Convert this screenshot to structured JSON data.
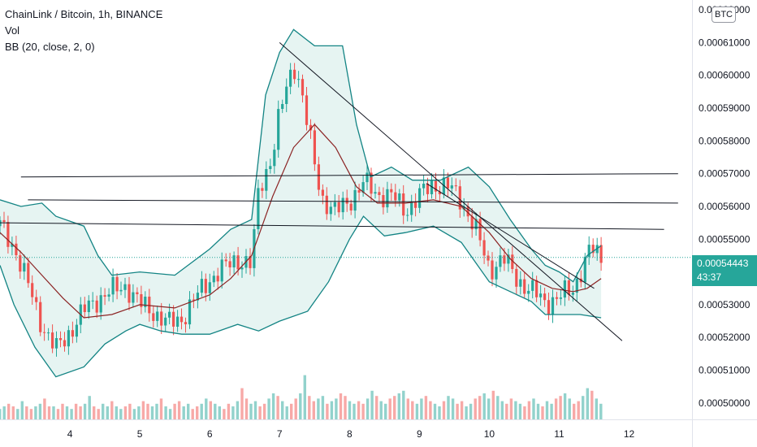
{
  "legend": {
    "symbol": "ChainLink / Bitcoin, 1h, BINANCE",
    "vol": "Vol",
    "bb": "BB (20, close, 2, 0)"
  },
  "currency_button": "BTC",
  "last_price": {
    "value": "0.00054443",
    "countdown": "43:37"
  },
  "colors": {
    "up": "#26a69a",
    "down": "#ef5350",
    "bb_band": "#138484",
    "bb_basis": "#8b2323",
    "bb_fill": "#e6f4f2",
    "trendline": "#131722"
  },
  "chart_data": {
    "type": "candlestick",
    "title": "ChainLink / Bitcoin, 1h, BINANCE",
    "y_ticks": [
      "0.00050000",
      "0.00051000",
      "0.00052000",
      "0.00053000",
      "0.00054000",
      "0.00055000",
      "0.00056000",
      "0.00057000",
      "0.00058000",
      "0.00059000",
      "0.00060000",
      "0.00061000",
      "0.00062000"
    ],
    "x_ticks": [
      "4",
      "5",
      "6",
      "7",
      "8",
      "9",
      "10",
      "11",
      "12"
    ],
    "ylim": [
      0.000495,
      0.000623
    ],
    "xlim": [
      3.0,
      12.9
    ],
    "last_price": 0.00054443,
    "indicators": [
      "Vol",
      "BB (20, close, 2, 0)"
    ],
    "bb_upper_points": [
      [
        3.0,
        0.000562
      ],
      [
        3.3,
        0.00056
      ],
      [
        3.6,
        0.000561
      ],
      [
        3.8,
        0.000557
      ],
      [
        4.2,
        0.000554
      ],
      [
        4.4,
        0.000545
      ],
      [
        4.6,
        0.000539
      ],
      [
        5.0,
        0.00054
      ],
      [
        5.5,
        0.000539
      ],
      [
        6.0,
        0.000547
      ],
      [
        6.3,
        0.000553
      ],
      [
        6.6,
        0.000556
      ],
      [
        6.8,
        0.000594
      ],
      [
        7.0,
        0.000607
      ],
      [
        7.2,
        0.000614
      ],
      [
        7.5,
        0.000609
      ],
      [
        7.9,
        0.000609
      ],
      [
        8.1,
        0.000585
      ],
      [
        8.3,
        0.000569
      ],
      [
        8.6,
        0.000572
      ],
      [
        8.9,
        0.000568
      ],
      [
        9.3,
        0.000568
      ],
      [
        9.7,
        0.000572
      ],
      [
        10.0,
        0.000566
      ],
      [
        10.3,
        0.000556
      ],
      [
        10.6,
        0.000547
      ],
      [
        10.8,
        0.000542
      ],
      [
        11.0,
        0.00054
      ],
      [
        11.2,
        0.000537
      ],
      [
        11.4,
        0.000545
      ],
      [
        11.6,
        0.000548
      ]
    ],
    "bb_lower_points": [
      [
        3.0,
        0.000542
      ],
      [
        3.2,
        0.00053
      ],
      [
        3.5,
        0.000517
      ],
      [
        3.8,
        0.000508
      ],
      [
        4.2,
        0.000511
      ],
      [
        4.5,
        0.000518
      ],
      [
        4.8,
        0.000522
      ],
      [
        5.0,
        0.000524
      ],
      [
        5.3,
        0.000522
      ],
      [
        5.6,
        0.000521
      ],
      [
        6.0,
        0.000521
      ],
      [
        6.4,
        0.000524
      ],
      [
        6.7,
        0.000522
      ],
      [
        7.0,
        0.000525
      ],
      [
        7.4,
        0.000528
      ],
      [
        7.7,
        0.000537
      ],
      [
        8.0,
        0.00055
      ],
      [
        8.2,
        0.000557
      ],
      [
        8.5,
        0.000551
      ],
      [
        8.8,
        0.000552
      ],
      [
        9.2,
        0.000554
      ],
      [
        9.6,
        0.000549
      ],
      [
        10.0,
        0.000537
      ],
      [
        10.3,
        0.000534
      ],
      [
        10.6,
        0.000531
      ],
      [
        10.8,
        0.000527
      ],
      [
        11.0,
        0.000527
      ],
      [
        11.3,
        0.000527
      ],
      [
        11.6,
        0.000526
      ]
    ],
    "bb_basis_points": [
      [
        3.0,
        0.000552
      ],
      [
        3.3,
        0.000546
      ],
      [
        3.6,
        0.000539
      ],
      [
        3.9,
        0.000532
      ],
      [
        4.2,
        0.000526
      ],
      [
        4.6,
        0.000527
      ],
      [
        5.0,
        0.00053
      ],
      [
        5.5,
        0.000529
      ],
      [
        6.0,
        0.000533
      ],
      [
        6.3,
        0.000538
      ],
      [
        6.6,
        0.000545
      ],
      [
        6.9,
        0.000563
      ],
      [
        7.2,
        0.000578
      ],
      [
        7.5,
        0.000585
      ],
      [
        7.8,
        0.000578
      ],
      [
        8.1,
        0.000566
      ],
      [
        8.4,
        0.000561
      ],
      [
        8.8,
        0.000561
      ],
      [
        9.2,
        0.000562
      ],
      [
        9.6,
        0.00056
      ],
      [
        10.0,
        0.000552
      ],
      [
        10.3,
        0.000544
      ],
      [
        10.6,
        0.000538
      ],
      [
        10.9,
        0.000535
      ],
      [
        11.2,
        0.000534
      ],
      [
        11.4,
        0.000535
      ],
      [
        11.6,
        0.000538
      ]
    ],
    "price_points": [
      [
        3.0,
        0.000554
      ],
      [
        3.2,
        0.000548
      ],
      [
        3.4,
        0.000536
      ],
      [
        3.6,
        0.000524
      ],
      [
        3.8,
        0.000516
      ],
      [
        4.0,
        0.000522
      ],
      [
        4.2,
        0.000528
      ],
      [
        4.4,
        0.000532
      ],
      [
        4.6,
        0.000534
      ],
      [
        4.8,
        0.000536
      ],
      [
        5.0,
        0.00053
      ],
      [
        5.2,
        0.000528
      ],
      [
        5.4,
        0.000524
      ],
      [
        5.6,
        0.000526
      ],
      [
        5.8,
        0.000532
      ],
      [
        6.0,
        0.000538
      ],
      [
        6.2,
        0.000541
      ],
      [
        6.4,
        0.000544
      ],
      [
        6.6,
        0.000542
      ],
      [
        6.7,
        0.000565
      ],
      [
        6.9,
        0.000576
      ],
      [
        7.0,
        0.000588
      ],
      [
        7.2,
        0.000604
      ],
      [
        7.3,
        0.000597
      ],
      [
        7.4,
        0.000584
      ],
      [
        7.5,
        0.000573
      ],
      [
        7.6,
        0.000563
      ],
      [
        7.8,
        0.000558
      ],
      [
        8.0,
        0.000562
      ],
      [
        8.2,
        0.000567
      ],
      [
        8.4,
        0.000564
      ],
      [
        8.6,
        0.000563
      ],
      [
        8.8,
        0.000559
      ],
      [
        9.0,
        0.000563
      ],
      [
        9.2,
        0.000567
      ],
      [
        9.4,
        0.000566
      ],
      [
        9.6,
        0.000562
      ],
      [
        9.8,
        0.000553
      ],
      [
        10.0,
        0.000541
      ],
      [
        10.2,
        0.000544
      ],
      [
        10.4,
        0.000538
      ],
      [
        10.6,
        0.000534
      ],
      [
        10.8,
        0.000531
      ],
      [
        11.0,
        0.000532
      ],
      [
        11.2,
        0.000535
      ],
      [
        11.3,
        0.00054
      ],
      [
        11.45,
        0.000547
      ],
      [
        11.6,
        0.00054443
      ]
    ],
    "volume_heights": [
      4,
      5,
      6,
      5,
      4,
      7,
      5,
      4,
      5,
      6,
      8,
      5,
      5,
      4,
      6,
      5,
      4,
      6,
      5,
      6,
      9,
      5,
      4,
      6,
      5,
      7,
      5,
      4,
      5,
      6,
      4,
      5,
      7,
      6,
      5,
      6,
      8,
      5,
      4,
      6,
      7,
      5,
      6,
      4,
      5,
      6,
      8,
      7,
      6,
      5,
      4,
      6,
      5,
      7,
      12,
      8,
      6,
      7,
      5,
      6,
      8,
      10,
      9,
      7,
      5,
      6,
      8,
      10,
      17,
      9,
      7,
      8,
      9,
      6,
      7,
      8,
      10,
      9,
      7,
      6,
      7,
      6,
      8,
      11,
      9,
      7,
      6,
      8,
      9,
      10,
      11,
      8,
      7,
      6,
      8,
      9,
      7,
      6,
      5,
      7,
      9,
      8,
      6,
      7,
      5,
      6,
      8,
      9,
      10,
      8,
      11,
      9,
      7,
      6,
      8,
      7,
      6,
      5,
      7,
      8,
      6,
      5,
      7,
      6,
      8,
      9,
      10,
      8,
      6,
      7,
      9,
      12,
      11,
      8,
      6
    ],
    "trendlines": [
      {
        "from": [
          7.0,
          0.00061
        ],
        "to": [
          11.9,
          0.000519
        ]
      },
      {
        "from": [
          9.1,
          0.000567
        ],
        "to": [
          11.5,
          0.000535
        ]
      },
      {
        "from": [
          3.0,
          0.000555
        ],
        "to": [
          12.5,
          0.000553
        ]
      },
      {
        "from": [
          3.4,
          0.000562
        ],
        "to": [
          12.7,
          0.000561
        ]
      },
      {
        "from": [
          3.3,
          0.000569
        ],
        "to": [
          12.7,
          0.00057
        ]
      }
    ]
  }
}
